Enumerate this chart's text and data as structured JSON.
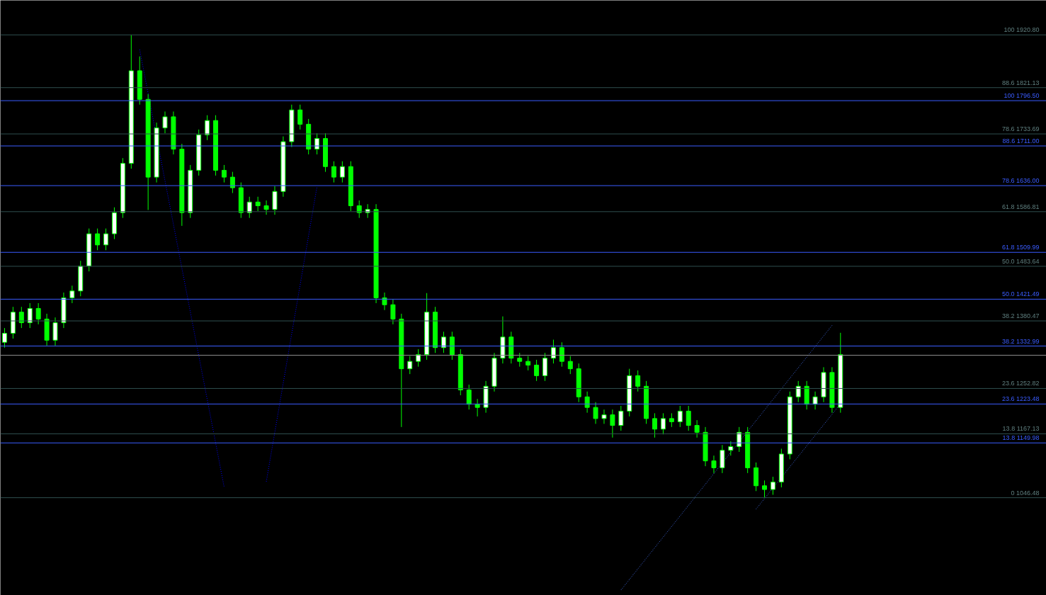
{
  "chart_data": {
    "type": "candlestick",
    "categories": [
      null,
      null,
      null,
      null,
      null,
      null,
      null,
      null,
      null,
      null,
      null,
      null,
      null,
      null,
      null,
      null,
      null,
      null,
      null,
      null,
      null,
      null,
      null,
      null,
      null,
      null,
      null,
      null,
      null,
      null,
      null,
      null,
      null,
      null,
      null,
      null,
      null,
      null,
      null,
      null,
      null,
      null,
      null,
      null,
      null,
      null,
      null,
      null,
      null,
      null,
      null,
      null,
      null,
      null,
      null,
      null,
      null,
      null,
      null,
      null,
      null,
      null,
      null,
      null,
      null,
      null,
      null,
      null,
      null,
      null,
      null,
      null,
      null,
      null,
      null,
      null,
      null,
      null,
      null,
      null,
      null,
      null,
      null,
      null,
      null,
      null,
      null,
      null,
      null,
      null,
      null,
      null,
      null,
      null,
      null,
      null,
      null,
      null,
      null,
      null
    ],
    "ohlc": [
      [
        1340,
        1367,
        1330,
        1357
      ],
      [
        1357,
        1407,
        1347,
        1397
      ],
      [
        1397,
        1407,
        1367,
        1377
      ],
      [
        1377,
        1414,
        1367,
        1404
      ],
      [
        1404,
        1414,
        1374,
        1384
      ],
      [
        1384,
        1394,
        1334,
        1344
      ],
      [
        1344,
        1387,
        1334,
        1377
      ],
      [
        1377,
        1434,
        1367,
        1424
      ],
      [
        1424,
        1447,
        1414,
        1437
      ],
      [
        1437,
        1494,
        1427,
        1484
      ],
      [
        1484,
        1555,
        1474,
        1545
      ],
      [
        1545,
        1555,
        1514,
        1524
      ],
      [
        1524,
        1555,
        1514,
        1545
      ],
      [
        1545,
        1595,
        1535,
        1585
      ],
      [
        1585,
        1688,
        1575,
        1678
      ],
      [
        1678,
        1920.8,
        1668,
        1853
      ],
      [
        1853,
        1880,
        1789,
        1799
      ],
      [
        1799,
        1809,
        1590,
        1652
      ],
      [
        1652,
        1755,
        1642,
        1745
      ],
      [
        1745,
        1776,
        1735,
        1766
      ],
      [
        1766,
        1776,
        1695,
        1705
      ],
      [
        1705,
        1715,
        1560,
        1585
      ],
      [
        1585,
        1675,
        1575,
        1665
      ],
      [
        1665,
        1742,
        1655,
        1732
      ],
      [
        1732,
        1769,
        1722,
        1759
      ],
      [
        1759,
        1769,
        1655,
        1665
      ],
      [
        1665,
        1675,
        1642,
        1652
      ],
      [
        1652,
        1662,
        1622,
        1632
      ],
      [
        1632,
        1642,
        1575,
        1585
      ],
      [
        1585,
        1615,
        1575,
        1605
      ],
      [
        1605,
        1615,
        1588,
        1598
      ],
      [
        1598,
        1608,
        1581,
        1591
      ],
      [
        1591,
        1635,
        1581,
        1625
      ],
      [
        1625,
        1729,
        1615,
        1719
      ],
      [
        1719,
        1789,
        1709,
        1779
      ],
      [
        1779,
        1789,
        1742,
        1752
      ],
      [
        1752,
        1762,
        1695,
        1705
      ],
      [
        1705,
        1735,
        1695,
        1725
      ],
      [
        1725,
        1735,
        1662,
        1672
      ],
      [
        1672,
        1682,
        1642,
        1652
      ],
      [
        1652,
        1682,
        1642,
        1672
      ],
      [
        1672,
        1682,
        1588,
        1598
      ],
      [
        1598,
        1608,
        1575,
        1585
      ],
      [
        1585,
        1601,
        1575,
        1591
      ],
      [
        1591,
        1601,
        1414,
        1424
      ],
      [
        1424,
        1434,
        1401,
        1411
      ],
      [
        1411,
        1421,
        1374,
        1384
      ],
      [
        1384,
        1394,
        1180,
        1290
      ],
      [
        1290,
        1314,
        1280,
        1304
      ],
      [
        1304,
        1327,
        1294,
        1317
      ],
      [
        1317,
        1433,
        1307,
        1397
      ],
      [
        1397,
        1407,
        1320,
        1330
      ],
      [
        1330,
        1360,
        1320,
        1350
      ],
      [
        1350,
        1360,
        1307,
        1317
      ],
      [
        1317,
        1327,
        1240,
        1250
      ],
      [
        1250,
        1260,
        1213,
        1223
      ],
      [
        1223,
        1233,
        1200,
        1217
      ],
      [
        1217,
        1267,
        1207,
        1257
      ],
      [
        1257,
        1320,
        1247,
        1310
      ],
      [
        1310,
        1389,
        1300,
        1350
      ],
      [
        1350,
        1360,
        1300,
        1310
      ],
      [
        1310,
        1320,
        1294,
        1304
      ],
      [
        1304,
        1314,
        1287,
        1297
      ],
      [
        1297,
        1307,
        1267,
        1277
      ],
      [
        1277,
        1320,
        1267,
        1310
      ],
      [
        1310,
        1345,
        1300,
        1330
      ],
      [
        1330,
        1340,
        1294,
        1304
      ],
      [
        1304,
        1314,
        1280,
        1290
      ],
      [
        1290,
        1300,
        1227,
        1237
      ],
      [
        1237,
        1247,
        1207,
        1217
      ],
      [
        1217,
        1227,
        1186,
        1196
      ],
      [
        1196,
        1213,
        1186,
        1203
      ],
      [
        1203,
        1213,
        1160,
        1183
      ],
      [
        1183,
        1220,
        1173,
        1210
      ],
      [
        1210,
        1290,
        1200,
        1277
      ],
      [
        1277,
        1287,
        1247,
        1257
      ],
      [
        1257,
        1267,
        1186,
        1196
      ],
      [
        1196,
        1206,
        1160,
        1176
      ],
      [
        1176,
        1206,
        1166,
        1196
      ],
      [
        1196,
        1206,
        1180,
        1190
      ],
      [
        1190,
        1220,
        1180,
        1210
      ],
      [
        1210,
        1220,
        1173,
        1183
      ],
      [
        1183,
        1193,
        1160,
        1170
      ],
      [
        1170,
        1180,
        1106,
        1116
      ],
      [
        1116,
        1126,
        1093,
        1103
      ],
      [
        1103,
        1146,
        1093,
        1136
      ],
      [
        1136,
        1153,
        1126,
        1143
      ],
      [
        1143,
        1180,
        1133,
        1170
      ],
      [
        1170,
        1180,
        1093,
        1103
      ],
      [
        1103,
        1113,
        1059,
        1069
      ],
      [
        1069,
        1079,
        1046,
        1062
      ],
      [
        1062,
        1086,
        1052,
        1076
      ],
      [
        1076,
        1139,
        1066,
        1129
      ],
      [
        1129,
        1247,
        1119,
        1237
      ],
      [
        1237,
        1267,
        1227,
        1257
      ],
      [
        1257,
        1267,
        1213,
        1223
      ],
      [
        1223,
        1247,
        1213,
        1237
      ],
      [
        1237,
        1293,
        1227,
        1283
      ],
      [
        1283,
        1293,
        1207,
        1217
      ],
      [
        1217,
        1358,
        1207,
        1317
      ]
    ],
    "color": "#00ff00",
    "series": [
      {
        "type": "line",
        "color": "#0000ff",
        "line_style": "dotted",
        "values": [
          null,
          null,
          null,
          null,
          null,
          null,
          null,
          null,
          null,
          null,
          null,
          null,
          null,
          null,
          null,
          null,
          1893,
          null,
          null,
          null,
          null,
          null,
          null,
          null,
          null,
          null,
          1067,
          null,
          null,
          null,
          null,
          null,
          null,
          null,
          null,
          null,
          null,
          null,
          null,
          null,
          null,
          null,
          null,
          null,
          null,
          null,
          null,
          null,
          null,
          null,
          null,
          null,
          null,
          null,
          null,
          null,
          null,
          null,
          null,
          null,
          null,
          null,
          null,
          null,
          null,
          null,
          null,
          null,
          null,
          null,
          null,
          null,
          null,
          null,
          null,
          null,
          null,
          null,
          null,
          null,
          null,
          null,
          null,
          null,
          null,
          null,
          null,
          null,
          null,
          null,
          null,
          null,
          null,
          null,
          null,
          null,
          null,
          null,
          null,
          null
        ]
      },
      {
        "type": "line",
        "color": "#0000ff",
        "line_style": "dotted",
        "values": [
          null,
          null,
          null,
          null,
          null,
          null,
          null,
          null,
          null,
          null,
          null,
          null,
          null,
          null,
          null,
          null,
          null,
          null,
          null,
          null,
          null,
          null,
          null,
          null,
          null,
          null,
          null,
          null,
          null,
          null,
          null,
          1077,
          null,
          null,
          null,
          null,
          null,
          1634,
          null,
          null,
          null,
          null,
          null,
          null,
          null,
          null,
          null,
          null,
          null,
          null,
          null,
          null,
          null,
          null,
          null,
          null,
          null,
          null,
          null,
          null,
          null,
          null,
          null,
          null,
          null,
          null,
          null,
          null,
          null,
          null,
          null,
          null,
          null,
          null,
          null,
          null,
          null,
          null,
          null,
          null,
          null,
          null,
          null,
          null,
          null,
          null,
          null,
          null,
          null,
          null,
          null,
          null,
          null,
          null,
          null,
          null,
          null,
          null,
          null,
          null
        ]
      },
      {
        "type": "line",
        "color": "#4169e1",
        "line_style": "dotted",
        "values": [
          null,
          null,
          null,
          null,
          null,
          null,
          null,
          null,
          null,
          null,
          null,
          null,
          null,
          null,
          null,
          null,
          null,
          null,
          null,
          null,
          null,
          null,
          null,
          null,
          null,
          null,
          null,
          null,
          null,
          null,
          null,
          null,
          null,
          null,
          null,
          null,
          null,
          null,
          null,
          null,
          null,
          null,
          null,
          null,
          null,
          null,
          null,
          null,
          null,
          null,
          null,
          null,
          null,
          null,
          null,
          null,
          null,
          null,
          null,
          null,
          null,
          null,
          null,
          null,
          null,
          null,
          null,
          null,
          null,
          null,
          null,
          null,
          null,
          872,
          null,
          null,
          null,
          null,
          null,
          null,
          null,
          null,
          null,
          null,
          null,
          null,
          null,
          null,
          null,
          null,
          null,
          null,
          null,
          null,
          null,
          null,
          null,
          null,
          1372,
          null
        ]
      },
      {
        "type": "line",
        "color": "#4169e1",
        "line_style": "dotted",
        "values": [
          null,
          null,
          null,
          null,
          null,
          null,
          null,
          null,
          null,
          null,
          null,
          null,
          null,
          null,
          null,
          null,
          null,
          null,
          null,
          null,
          null,
          null,
          null,
          null,
          null,
          null,
          null,
          null,
          null,
          null,
          null,
          null,
          null,
          null,
          null,
          null,
          null,
          null,
          null,
          null,
          null,
          null,
          null,
          null,
          null,
          null,
          null,
          null,
          null,
          null,
          null,
          null,
          null,
          null,
          null,
          null,
          null,
          null,
          null,
          null,
          null,
          null,
          null,
          null,
          null,
          null,
          null,
          null,
          null,
          null,
          null,
          null,
          null,
          null,
          null,
          null,
          null,
          null,
          null,
          null,
          null,
          null,
          null,
          null,
          null,
          null,
          null,
          null,
          null,
          1025,
          null,
          null,
          null,
          null,
          null,
          null,
          null,
          null,
          null,
          1224
        ]
      }
    ],
    "ylim": [
      862,
      1986
    ],
    "tick_labels": false,
    "grid": false,
    "ref_lines": [
      {
        "axis": "y",
        "value": 1920.8,
        "label": "100 1920.80",
        "color": "#2f4f4f"
      },
      {
        "axis": "y",
        "value": 1821.13,
        "label": "88.6 1821.13",
        "color": "#2f4f4f"
      },
      {
        "axis": "y",
        "value": 1733.69,
        "label": "78.6 1733.69",
        "color": "#2f4f4f"
      },
      {
        "axis": "y",
        "value": 1586.81,
        "label": "61.8 1586.81",
        "color": "#2f4f4f"
      },
      {
        "axis": "y",
        "value": 1483.64,
        "label": "50.0 1483.64",
        "color": "#2f4f4f"
      },
      {
        "axis": "y",
        "value": 1380.47,
        "label": "38.2 1380.47",
        "color": "#2f4f4f"
      },
      {
        "axis": "y",
        "value": 1252.82,
        "label": "23.6 1252.82",
        "color": "#2f4f4f"
      },
      {
        "axis": "y",
        "value": 1167.13,
        "label": "13.8 1167.13",
        "color": "#2f4f4f"
      },
      {
        "axis": "y",
        "value": 1046.48,
        "label": "0 1046.48",
        "color": "#2f4f4f"
      },
      {
        "axis": "y",
        "value": 1796.5,
        "label": "100 1796.50",
        "color": "#3a5cff"
      },
      {
        "axis": "y",
        "value": 1711.0,
        "label": "88.6 1711.00",
        "color": "#3a5cff"
      },
      {
        "axis": "y",
        "value": 1636.0,
        "label": "78.6 1636.00",
        "color": "#3a5cff"
      },
      {
        "axis": "y",
        "value": 1509.99,
        "label": "61.8 1509.99",
        "color": "#3a5cff"
      },
      {
        "axis": "y",
        "value": 1421.49,
        "label": "50.0 1421.49",
        "color": "#3a5cff"
      },
      {
        "axis": "y",
        "value": 1332.99,
        "label": "38.2 1332.99",
        "color": "#3a5cff"
      },
      {
        "axis": "y",
        "value": 1223.48,
        "label": "23.6 1223.48",
        "color": "#3a5cff"
      },
      {
        "axis": "y",
        "value": 1149.98,
        "label": "13.8 1149.98",
        "color": "#3a5cff"
      },
      {
        "axis": "y",
        "value": 1315.6,
        "color": "#8a8a8a"
      }
    ]
  }
}
